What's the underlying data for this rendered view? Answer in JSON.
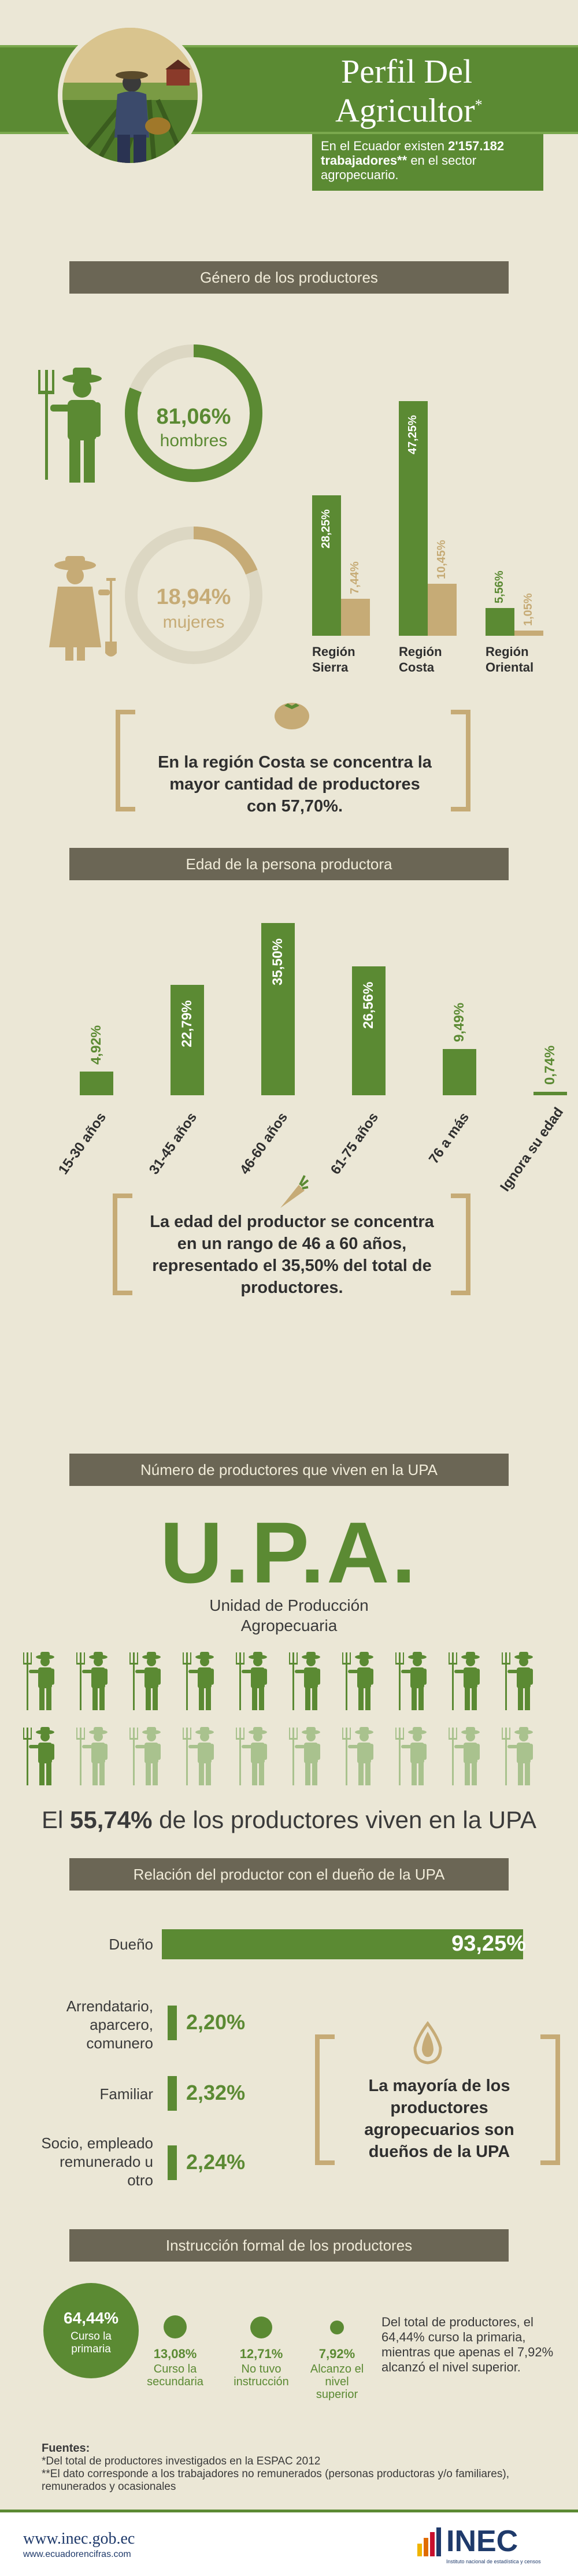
{
  "header": {
    "title_line1": "Perfil Del",
    "title_line2": "Agricultor",
    "title_mark": "*",
    "intro_pre": "En el Ecuador existen",
    "intro_number": "2'157.182",
    "intro_bold": "trabajadores**",
    "intro_post": "en el sector agropecuario."
  },
  "gender": {
    "section_title": "Género de los productores",
    "men_pct": "81,06%",
    "men_label": "hombres",
    "men_value": 81.06,
    "women_pct": "18,94%",
    "women_label": "mujeres",
    "women_value": 18.94,
    "callout": "En la región Costa se concentra la mayor cantidad de productores con 57,70%."
  },
  "chart_data": [
    {
      "type": "bar",
      "categories": [
        "Región Sierra",
        "Región Costa",
        "Región Oriental"
      ],
      "series": [
        {
          "values": [
            28.25,
            47.25,
            5.56
          ],
          "labels": [
            "28,25%",
            "47,25%",
            "5,56%"
          ]
        },
        {
          "values": [
            7.44,
            10.45,
            1.05
          ],
          "labels": [
            "7,44%",
            "10,45%",
            "1,05%"
          ]
        }
      ],
      "category_lines": [
        [
          "Región",
          "Sierra"
        ],
        [
          "Región",
          "Costa"
        ],
        [
          "Región",
          "Oriental"
        ]
      ]
    },
    {
      "type": "bar",
      "categories": [
        "15-30 años",
        "31-45 años",
        "46-60 años",
        "61-75 años",
        "76 a más",
        "Ignora su edad"
      ],
      "values": [
        4.92,
        22.79,
        35.5,
        26.56,
        9.49,
        0.74
      ],
      "labels": [
        "4,92%",
        "22,79%",
        "35,50%",
        "26,56%",
        "9,49%",
        "0,74%"
      ]
    },
    {
      "type": "bar",
      "categories": [
        "Dueño",
        "Arrendatario, aparcero, comunero",
        "Familiar",
        "Socio, empleado remunerado u otro"
      ],
      "values": [
        93.25,
        2.2,
        2.32,
        2.24
      ],
      "labels": [
        "93,25%",
        "2,20%",
        "2,32%",
        "2,24%"
      ]
    }
  ],
  "age": {
    "section_title": "Edad de la persona productora",
    "callout": "La edad del productor se concentra en un rango de 46 a 60 años, representado el 35,50% del total de productores."
  },
  "upa": {
    "section_title": "Número de productores que viven en la UPA",
    "big": "U.P.A.",
    "subtitle_line1": "Unidad de Producción",
    "subtitle_line2": "Agropecuaria",
    "statement_pre": "El",
    "statement_pct": "55,74%",
    "statement_post": "de los productores viven en la UPA",
    "icons_total": 20,
    "icons_live": 11
  },
  "relation": {
    "section_title": "Relación del productor con el dueño de la UPA",
    "owner_label": "Dueño",
    "owner_pct": "93,25%",
    "rent_label_1": "Arrendatario,",
    "rent_label_2": "aparcero,",
    "rent_label_3": "comunero",
    "rent_pct": "2,20%",
    "family_label": "Familiar",
    "family_pct": "2,32%",
    "partner_label_1": "Socio, empleado",
    "partner_label_2": "remunerado u",
    "partner_label_3": "otro",
    "partner_pct": "2,24%",
    "callout": "La mayoría de los productores agropecuarios son dueños de la UPA"
  },
  "education": {
    "section_title": "Instrucción formal de los productores",
    "primary_pct": "64,44%",
    "primary_l1": "Curso la",
    "primary_l2": "primaria",
    "secondary_pct": "13,08%",
    "secondary_l1": "Curso la",
    "secondary_l2": "secundaria",
    "none_pct": "12,71%",
    "none_l1": "No tuvo",
    "none_l2": "instrucción",
    "higher_pct": "7,92%",
    "higher_l1": "Alcanzo el",
    "higher_l2": "nivel superior",
    "summary": "Del total de productores, el 64,44% curso la primaria, mientras que apenas el 7,92% alcanzó el nivel superior."
  },
  "sources": {
    "title": "Fuentes:",
    "line1": "*Del total de productores investigados en la ESPAC 2012",
    "line2": "**El dato corresponde a los trabajadores no remunerados (personas productoras y/o familiares), remunerados y ocasionales"
  },
  "footer": {
    "url": "www.inec.gob.ec",
    "url2": "www.ecuadorencifras.com",
    "logo": "INEC",
    "logo_sub": "Instituto nacional de estadística y censos"
  },
  "colors": {
    "green": "#5b8a33",
    "tan": "#c6ab76",
    "dark": "#6b6655",
    "background": "#ebe7d6"
  }
}
